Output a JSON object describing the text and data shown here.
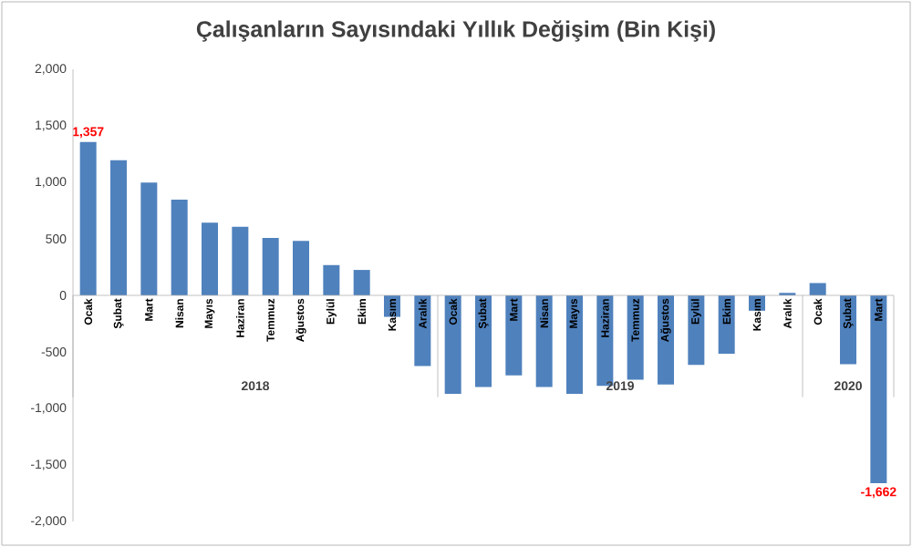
{
  "chart_data": {
    "type": "bar",
    "title": "Çalışanların Sayısındaki Yıllık Değişim (Bin Kişi)",
    "categories": [
      "Ocak",
      "Şubat",
      "Mart",
      "Nisan",
      "Mayıs",
      "Haziran",
      "Temmuz",
      "Ağustos",
      "Eylül",
      "Ekim",
      "Kasım",
      "Aralık",
      "Ocak",
      "Şubat",
      "Mart",
      "Nisan",
      "Mayıs",
      "Haziran",
      "Temmuz",
      "Ağustos",
      "Eylül",
      "Ekim",
      "Kasım",
      "Aralık",
      "Ocak",
      "Şubat",
      "Mart"
    ],
    "values": [
      1357,
      1195,
      997,
      847,
      643,
      606,
      509,
      482,
      268,
      225,
      -190,
      -625,
      -870,
      -810,
      -707,
      -810,
      -870,
      -800,
      -745,
      -788,
      -614,
      -516,
      -136,
      22,
      109,
      -609,
      -1662
    ],
    "value_labels": [
      "1,357",
      null,
      null,
      null,
      null,
      null,
      null,
      null,
      null,
      null,
      null,
      null,
      null,
      null,
      null,
      null,
      null,
      null,
      null,
      null,
      null,
      null,
      null,
      null,
      null,
      null,
      "-1,662"
    ],
    "color": "#4f81bd",
    "ylim": [
      -2000,
      2000
    ],
    "yticks": [
      {
        "value": -2000,
        "label": "-2,000"
      },
      {
        "value": -1500,
        "label": "-1,500"
      },
      {
        "value": -1000,
        "label": "-1,000"
      },
      {
        "value": -500,
        "label": "-500"
      },
      0,
      500,
      {
        "value": 1000,
        "label": "1,000"
      },
      {
        "value": 1500,
        "label": "1,500"
      },
      {
        "value": 2000,
        "label": "2,000"
      }
    ],
    "annotations": [
      "2018",
      "2019",
      "2020"
    ],
    "grid": false
  }
}
